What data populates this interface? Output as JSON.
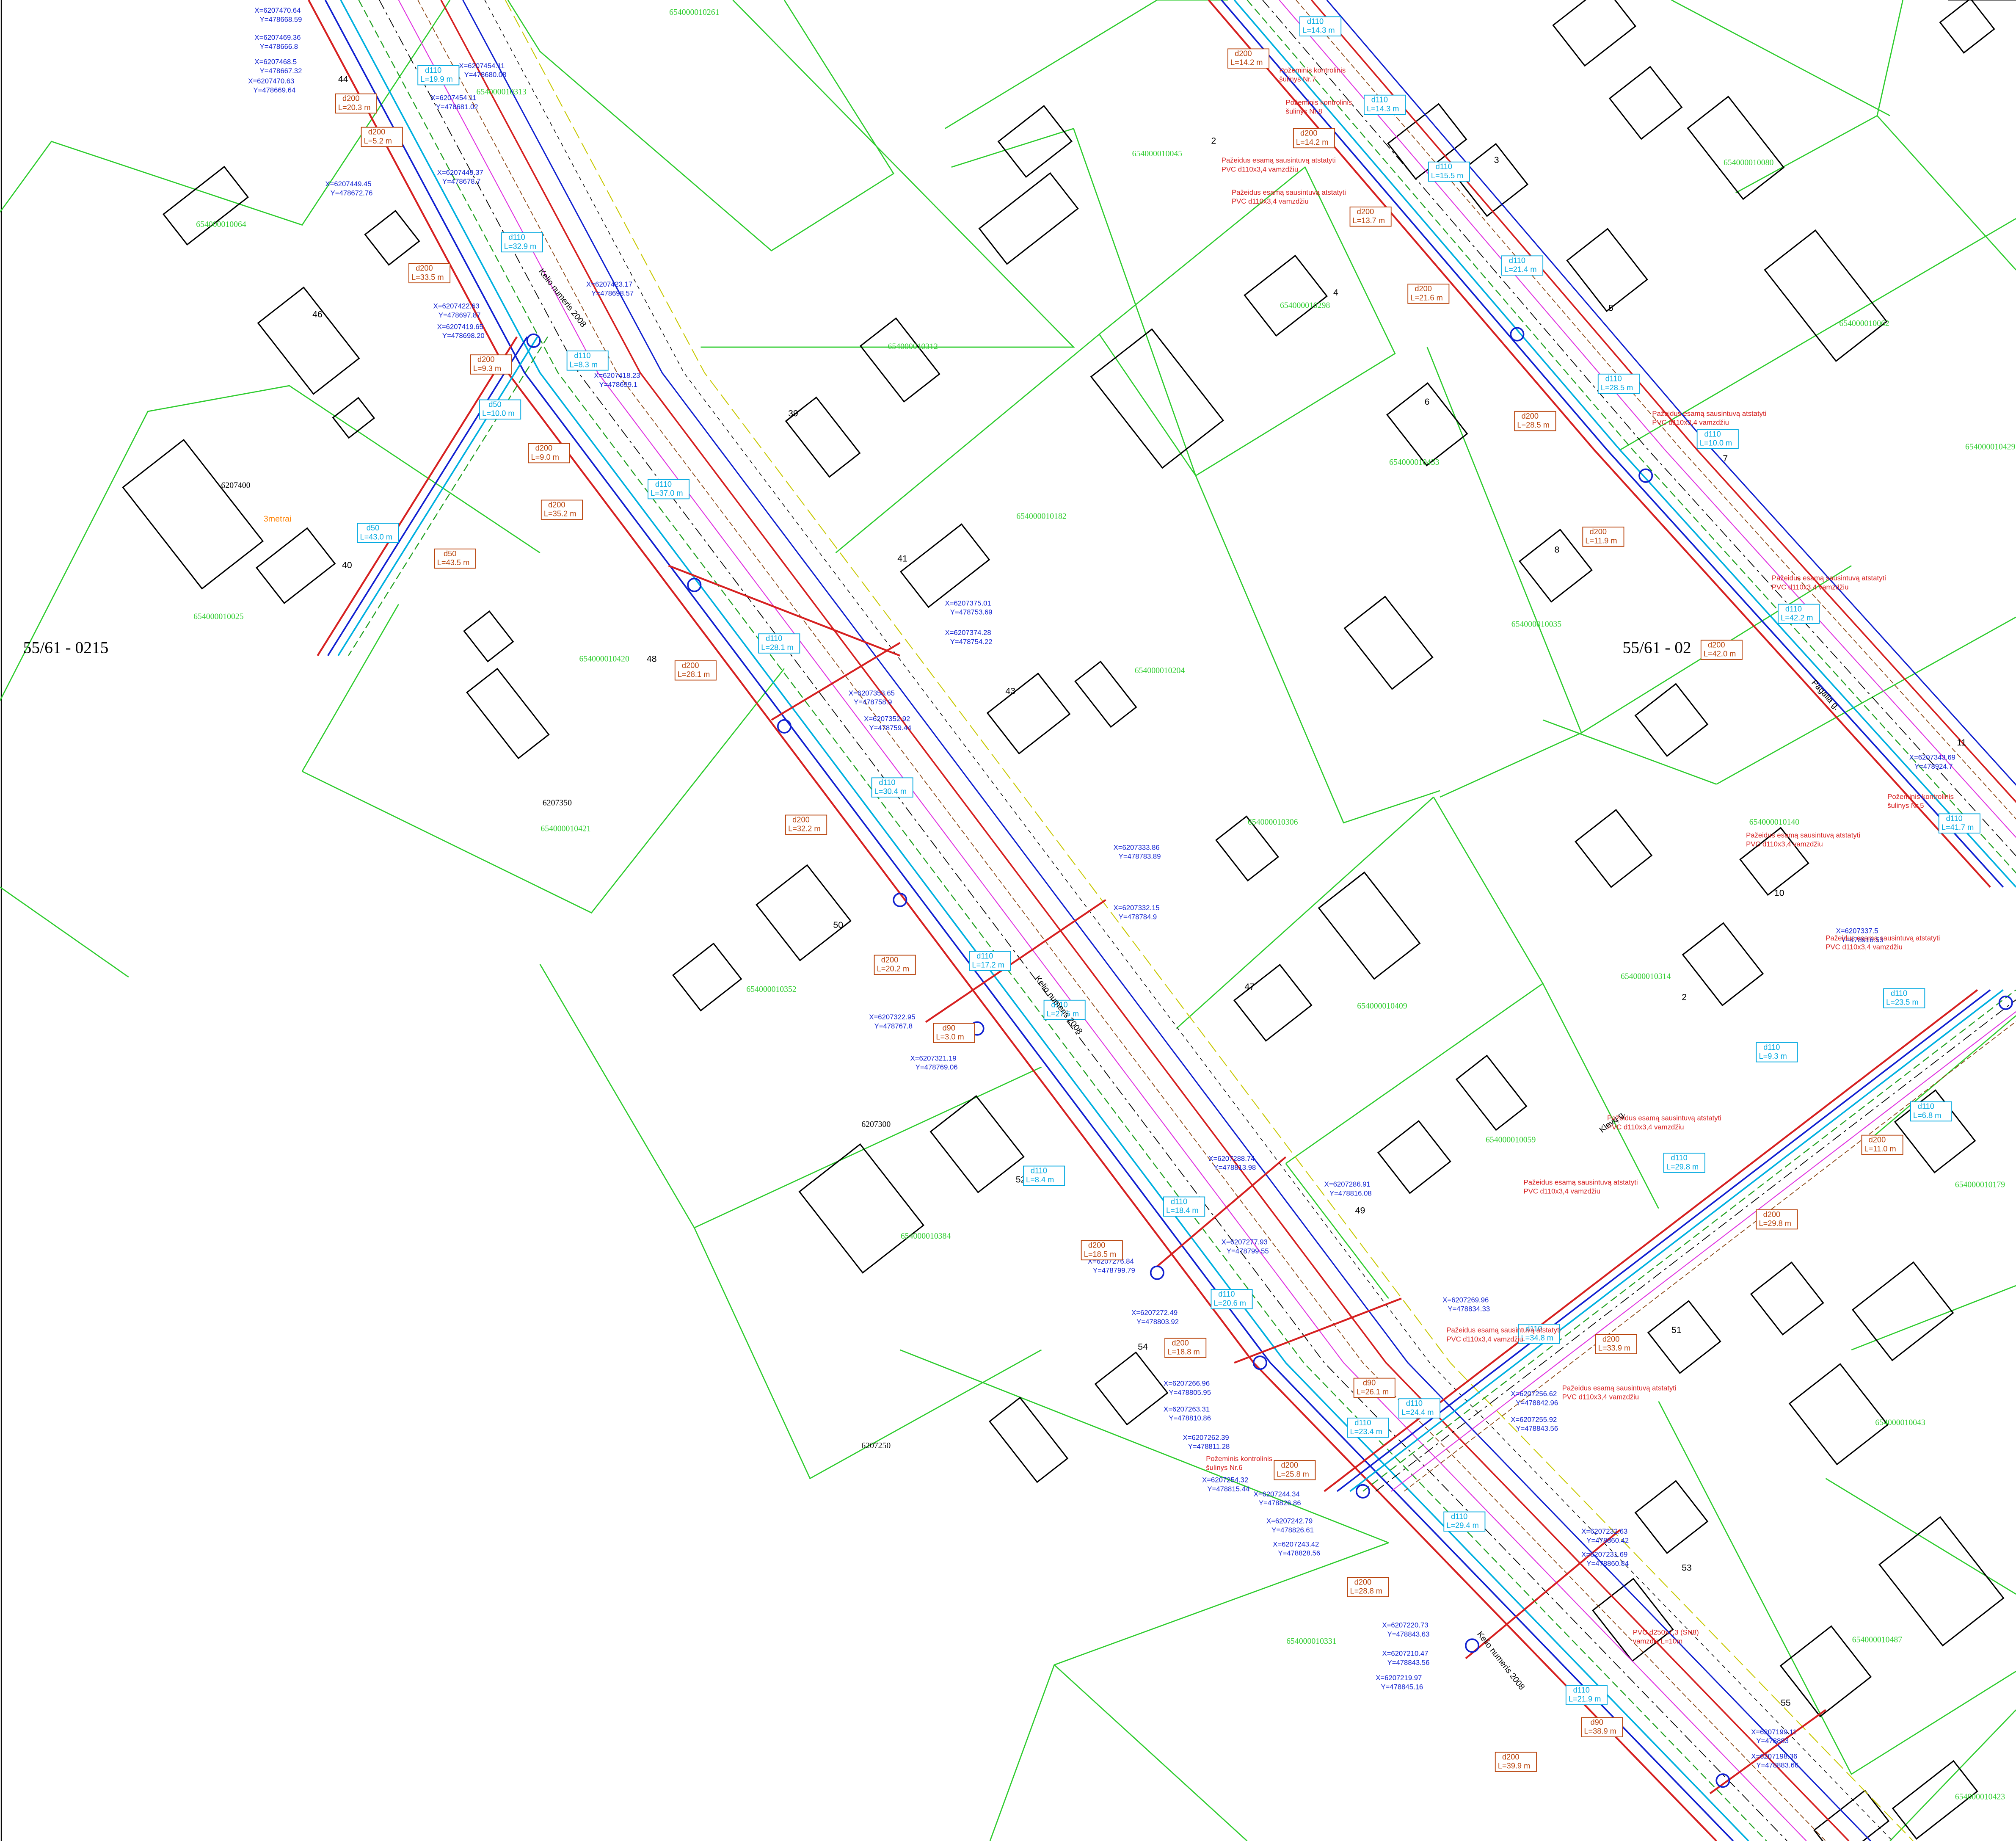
{
  "sheets": [
    "55/61 - 0215",
    "55/61 - 02"
  ],
  "parcels": [
    "654000010261",
    "654000010313",
    "654000010064",
    "654000010045",
    "654000010080",
    "654000010298",
    "654000010312",
    "654000010182",
    "654000010025",
    "654000010420",
    "654000010204",
    "654000010421",
    "654000010306",
    "654000010352",
    "654000010409",
    "654000010059",
    "654000010384",
    "654000010314",
    "654000010140",
    "654000010179",
    "654000010043",
    "654000010331",
    "654000010487",
    "654000010423",
    "654000010433",
    "654000010035",
    "654000010062",
    "654000010429"
  ],
  "houses": [
    "44",
    "46",
    "39",
    "41",
    "43",
    "48",
    "40",
    "50",
    "47",
    "49",
    "52",
    "54",
    "2",
    "3",
    "4",
    "5",
    "6",
    "8",
    "10",
    "11",
    "2",
    "51",
    "53",
    "55",
    "7"
  ],
  "grid_coords": [
    "6207400",
    "6207350",
    "6207300",
    "6207250"
  ],
  "coordinates": [
    {
      "x": "X=6207470.64",
      "y": "Y=478668.59"
    },
    {
      "x": "X=6207469.36",
      "y": "Y=478666.8"
    },
    {
      "x": "X=6207468.5",
      "y": "Y=478667.32"
    },
    {
      "x": "X=6207470.63",
      "y": "Y=478669.64"
    },
    {
      "x": "X=6207454.11",
      "y": "Y=478680.08"
    },
    {
      "x": "X=6207454.11",
      "y": "Y=478681.02"
    },
    {
      "x": "X=6207449.45",
      "y": "Y=478672.76"
    },
    {
      "x": "X=6207449.37",
      "y": "Y=478678.7"
    },
    {
      "x": "X=6207423.17",
      "y": "Y=478698.57"
    },
    {
      "x": "X=6207422.63",
      "y": "Y=478697.87"
    },
    {
      "x": "X=6207419.65",
      "y": "Y=478698.20"
    },
    {
      "x": "X=6207418.23",
      "y": "Y=478699.1"
    },
    {
      "x": "X=6207375.01",
      "y": "Y=478753.69"
    },
    {
      "x": "X=6207374.28",
      "y": "Y=478754.22"
    },
    {
      "x": "X=6207353.65",
      "y": "Y=478758.9"
    },
    {
      "x": "X=6207352.92",
      "y": "Y=478759.44"
    },
    {
      "x": "X=6207333.86",
      "y": "Y=478783.89"
    },
    {
      "x": "X=6207332.15",
      "y": "Y=478784.9"
    },
    {
      "x": "X=6207322.95",
      "y": "Y=478767.8"
    },
    {
      "x": "X=6207321.19",
      "y": "Y=478769.06"
    },
    {
      "x": "X=6207288.74",
      "y": "Y=478813.98"
    },
    {
      "x": "X=6207286.91",
      "y": "Y=478816.08"
    },
    {
      "x": "X=6207277.93",
      "y": "Y=478799.55"
    },
    {
      "x": "X=6207276.84",
      "y": "Y=478799.79"
    },
    {
      "x": "X=6207272.49",
      "y": "Y=478803.92"
    },
    {
      "x": "X=6207269.96",
      "y": "Y=478834.33"
    },
    {
      "x": "X=6207266.96",
      "y": "Y=478805.95"
    },
    {
      "x": "X=6207263.31",
      "y": "Y=478810.86"
    },
    {
      "x": "X=6207262.39",
      "y": "Y=478811.28"
    },
    {
      "x": "X=6207256.62",
      "y": "Y=478842.96"
    },
    {
      "x": "X=6207255.92",
      "y": "Y=478843.56"
    },
    {
      "x": "X=6207254.32",
      "y": "Y=478815.44"
    },
    {
      "x": "X=6207244.34",
      "y": "Y=478826.86"
    },
    {
      "x": "X=6207242.79",
      "y": "Y=478826.61"
    },
    {
      "x": "X=6207243.42",
      "y": "Y=478828.56"
    },
    {
      "x": "X=6207232.63",
      "y": "Y=478860.42"
    },
    {
      "x": "X=6207231.69",
      "y": "Y=478860.84"
    },
    {
      "x": "X=6207220.73",
      "y": "Y=478843.63"
    },
    {
      "x": "X=6207210.47",
      "y": "Y=478843.56"
    },
    {
      "x": "X=6207219.97",
      "y": "Y=478845.16"
    },
    {
      "x": "X=6207199.11",
      "y": "Y=478883"
    },
    {
      "x": "X=6207198.36",
      "y": "Y=478883.66"
    },
    {
      "x": "X=6207343.69",
      "y": "Y=478924.7"
    },
    {
      "x": "X=6207337.5",
      "y": "Y=478916.53"
    }
  ],
  "drain_pipes": [
    {
      "d": "d200",
      "l": "L=20.3 m"
    },
    {
      "d": "d200",
      "l": "L=5.2 m"
    },
    {
      "d": "d200",
      "l": "L=33.5 m"
    },
    {
      "d": "d200",
      "l": "L=9.3 m"
    },
    {
      "d": "d200",
      "l": "L=9.0 m"
    },
    {
      "d": "d200",
      "l": "L=35.2 m"
    },
    {
      "d": "d200",
      "l": "L=28.1 m"
    },
    {
      "d": "d200",
      "l": "L=32.2 m"
    },
    {
      "d": "d200",
      "l": "L=20.2 m"
    },
    {
      "d": "d90",
      "l": "L=3.0 m"
    },
    {
      "d": "d200",
      "l": "L=18.5 m"
    },
    {
      "d": "d200",
      "l": "L=18.8 m"
    },
    {
      "d": "d90",
      "l": "L=26.1 m"
    },
    {
      "d": "d200",
      "l": "L=25.8 m"
    },
    {
      "d": "d200",
      "l": "L=28.8 m"
    },
    {
      "d": "d200",
      "l": "L=39.9 m"
    },
    {
      "d": "d90",
      "l": "L=38.9 m"
    },
    {
      "d": "d200",
      "l": "L=14.2 m"
    },
    {
      "d": "d200",
      "l": "L=14.2 m"
    },
    {
      "d": "d200",
      "l": "L=13.7 m"
    },
    {
      "d": "d200",
      "l": "L=21.6 m"
    },
    {
      "d": "d200",
      "l": "L=28.5 m"
    },
    {
      "d": "d200",
      "l": "L=11.9 m"
    },
    {
      "d": "d200",
      "l": "L=42.0 m"
    },
    {
      "d": "d200",
      "l": "L=29.8 m"
    },
    {
      "d": "d200",
      "l": "L=33.9 m"
    },
    {
      "d": "d200",
      "l": "L=11.0 m"
    },
    {
      "d": "d50",
      "l": "L=43.5 m"
    }
  ],
  "water_pipes": [
    {
      "d": "d110",
      "l": "L=19.9 m"
    },
    {
      "d": "d110",
      "l": "L=32.9 m"
    },
    {
      "d": "d110",
      "l": "L=8.3 m"
    },
    {
      "d": "d110",
      "l": "L=37.0 m"
    },
    {
      "d": "d110",
      "l": "L=28.1 m"
    },
    {
      "d": "d110",
      "l": "L=30.4 m"
    },
    {
      "d": "d110",
      "l": "L=17.2 m"
    },
    {
      "d": "d110",
      "l": "L=27.5 m"
    },
    {
      "d": "d110",
      "l": "L=8.4 m"
    },
    {
      "d": "d110",
      "l": "L=18.4 m"
    },
    {
      "d": "d110",
      "l": "L=20.6 m"
    },
    {
      "d": "d110",
      "l": "L=24.4 m"
    },
    {
      "d": "d110",
      "l": "L=23.4 m"
    },
    {
      "d": "d110",
      "l": "L=29.4 m"
    },
    {
      "d": "d110",
      "l": "L=34.8 m"
    },
    {
      "d": "d110",
      "l": "L=29.8 m"
    },
    {
      "d": "d110",
      "l": "L=6.8 m"
    },
    {
      "d": "d110",
      "l": "L=23.5 m"
    },
    {
      "d": "d110",
      "l": "L=9.3 m"
    },
    {
      "d": "d110",
      "l": "L=41.7 m"
    },
    {
      "d": "d110",
      "l": "L=42.2 m"
    },
    {
      "d": "d110",
      "l": "L=10.0 m"
    },
    {
      "d": "d110",
      "l": "L=28.5 m"
    },
    {
      "d": "d110",
      "l": "L=21.4 m"
    },
    {
      "d": "d110",
      "l": "L=15.5 m"
    },
    {
      "d": "d110",
      "l": "L=14.3 m"
    },
    {
      "d": "d110",
      "l": "L=14.3 m"
    },
    {
      "d": "d110",
      "l": "L=21.9 m"
    },
    {
      "d": "d50",
      "l": "L=43.0 m"
    },
    {
      "d": "d50",
      "l": "L=10.0 m"
    }
  ],
  "notes": [
    {
      "lines": [
        "Pažeidus esamą sausintuvą atstatyti",
        "PVC d110x3,4 vamzdžiu"
      ]
    },
    {
      "lines": [
        "Pažeidus esamą sausintuvą atstatyti",
        "PVC d110x3,4 vamzdžiu"
      ]
    },
    {
      "lines": [
        "Pažeidus esamą sausintuvą atstatyti",
        "PVC d110x3,4 vamzdžiu"
      ]
    },
    {
      "lines": [
        "Pažeidus esamą sausintuvą atstatyti",
        "PVC d110x3,4 vamzdžiu"
      ]
    },
    {
      "lines": [
        "Pažeidus esamą sausintuvą atstatyti",
        "PVC d110x3,4 vamzdžiu"
      ]
    },
    {
      "lines": [
        "Pažeidus esamą sausintuvą atstatyti",
        "PVC d110x3,4 vamzdžiu"
      ]
    },
    {
      "lines": [
        "Pažeidus esamą sausintuvą atstatyti",
        "PVC d110x3,4 vamzdžiu"
      ]
    },
    {
      "lines": [
        "Pažeidus esamą sausintuvą atstatyti",
        "PVC d110x3,4 vamzdžiu"
      ]
    },
    {
      "lines": [
        "Pažeidus esamą sausintuvą atstatyti",
        "PVC d110x3,4 vamzdžiu"
      ]
    },
    {
      "lines": [
        "Pažeidus esamą sausintuvą atstatyti",
        "PVC d110x3,4 vamzdžiu"
      ]
    },
    {
      "lines": [
        "Požeminis kontrolinis",
        "šulinys Nr.7"
      ]
    },
    {
      "lines": [
        "PVC d250x7,3 (SN8)",
        "vamzdis L=10m"
      ]
    },
    {
      "lines": [
        "Požeminis kontrolinis",
        "šulinys Nr.8"
      ]
    },
    {
      "lines": [
        "Požeminis kontrolinis",
        "šulinys Nr.6"
      ]
    },
    {
      "lines": [
        "Požeminis kontrolinis",
        "šulinys Nr.5"
      ]
    }
  ],
  "other_labels": [
    "3metrai",
    "Kelio numeris 2008",
    "Pagalia g.",
    "Klevų g."
  ]
}
